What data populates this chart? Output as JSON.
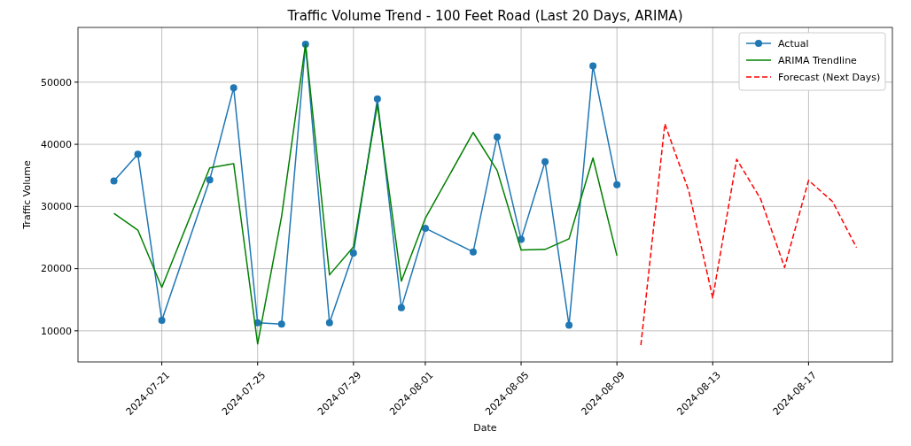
{
  "chart_data": {
    "type": "line",
    "title": "Traffic Volume Trend - 100 Feet Road (Last 20 Days, ARIMA)",
    "xlabel": "Date",
    "ylabel": "Traffic Volume",
    "xlim": [
      "2024-07-17T12:00",
      "2024-08-20T12:00"
    ],
    "ylim": [
      5000,
      58800
    ],
    "xticks": [
      "2024-07-21",
      "2024-07-25",
      "2024-07-29",
      "2024-08-01",
      "2024-08-05",
      "2024-08-09",
      "2024-08-13",
      "2024-08-17"
    ],
    "yticks": [
      10000,
      20000,
      30000,
      40000,
      50000
    ],
    "grid": true,
    "legend": "top right",
    "series": [
      {
        "name": "Actual",
        "color": "#1f77b4",
        "marker": "circle",
        "line_style": "solid",
        "x": [
          "2024-07-19",
          "2024-07-20",
          "2024-07-21",
          "2024-07-23",
          "2024-07-24",
          "2024-07-25",
          "2024-07-26",
          "2024-07-27",
          "2024-07-28",
          "2024-07-29",
          "2024-07-30",
          "2024-07-31",
          "2024-08-01",
          "2024-08-03",
          "2024-08-04",
          "2024-08-05",
          "2024-08-06",
          "2024-08-07",
          "2024-08-08",
          "2024-08-09"
        ],
        "values": [
          34100,
          38400,
          11700,
          34300,
          49100,
          11300,
          11100,
          56100,
          11300,
          22500,
          47300,
          13700,
          26500,
          22700,
          41200,
          24700,
          37200,
          10900,
          52600,
          33500
        ]
      },
      {
        "name": "ARIMA Trendline",
        "color": "#008000",
        "marker": "none",
        "line_style": "solid",
        "x": [
          "2024-07-19",
          "2024-07-20",
          "2024-07-21",
          "2024-07-23",
          "2024-07-24",
          "2024-07-25",
          "2024-07-26",
          "2024-07-27",
          "2024-07-28",
          "2024-07-29",
          "2024-07-30",
          "2024-07-31",
          "2024-08-01",
          "2024-08-03",
          "2024-08-04",
          "2024-08-05",
          "2024-08-06",
          "2024-08-07",
          "2024-08-08",
          "2024-08-09"
        ],
        "values": [
          28900,
          26200,
          17000,
          36200,
          36900,
          7900,
          28400,
          56100,
          19000,
          23500,
          46400,
          18000,
          28100,
          41900,
          35800,
          23000,
          23100,
          24800,
          37800,
          22100
        ]
      },
      {
        "name": "Forecast (Next Days)",
        "color": "#ff0000",
        "marker": "none",
        "line_style": "dashed",
        "x": [
          "2024-08-10",
          "2024-08-11",
          "2024-08-12",
          "2024-08-13",
          "2024-08-14",
          "2024-08-15",
          "2024-08-16",
          "2024-08-17",
          "2024-08-18",
          "2024-08-19"
        ],
        "values": [
          7700,
          43300,
          32500,
          15300,
          37600,
          31200,
          20200,
          34200,
          30800,
          23400
        ]
      }
    ]
  }
}
